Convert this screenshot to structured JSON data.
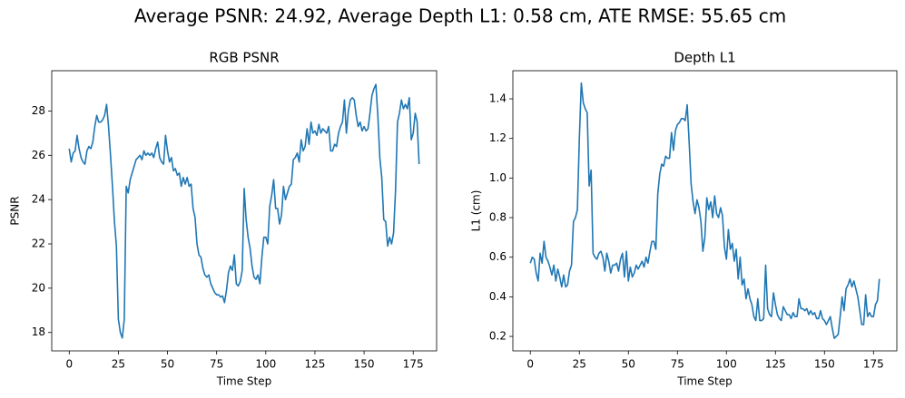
{
  "title": "Average PSNR: 24.92, Average Depth L1: 0.58 cm, ATE RMSE: 55.65 cm",
  "chart_data": [
    {
      "type": "line",
      "title": "RGB PSNR",
      "xlabel": "Time Step",
      "ylabel": "PSNR",
      "color": "#1f77b4",
      "x": [
        0,
        1,
        2,
        3,
        4,
        5,
        6,
        7,
        8,
        9,
        10,
        11,
        12,
        13,
        14,
        15,
        16,
        17,
        18,
        19,
        20,
        21,
        22,
        23,
        24,
        25,
        26,
        27,
        28,
        29,
        30,
        31,
        32,
        33,
        34,
        35,
        36,
        37,
        38,
        39,
        40,
        41,
        42,
        43,
        44,
        45,
        46,
        47,
        48,
        49,
        50,
        51,
        52,
        53,
        54,
        55,
        56,
        57,
        58,
        59,
        60,
        61,
        62,
        63,
        64,
        65,
        66,
        67,
        68,
        69,
        70,
        71,
        72,
        73,
        74,
        75,
        76,
        77,
        78,
        79,
        80,
        81,
        82,
        83,
        84,
        85,
        86,
        87,
        88,
        89,
        90,
        91,
        92,
        93,
        94,
        95,
        96,
        97,
        98,
        99,
        100,
        101,
        102,
        103,
        104,
        105,
        106,
        107,
        108,
        109,
        110,
        111,
        112,
        113,
        114,
        115,
        116,
        117,
        118,
        119,
        120,
        121,
        122,
        123,
        124,
        125,
        126,
        127,
        128,
        129,
        130,
        131,
        132,
        133,
        134,
        135,
        136,
        137,
        138,
        139,
        140,
        141,
        142,
        143,
        144,
        145,
        146,
        147,
        148,
        149,
        150,
        151,
        152,
        153,
        154,
        155,
        156,
        157,
        158,
        159,
        160,
        161,
        162,
        163,
        164,
        165,
        166,
        167,
        168,
        169,
        170,
        171,
        172,
        173,
        174,
        175,
        176,
        177,
        178
      ],
      "values": [
        26.3,
        25.7,
        26.1,
        26.2,
        26.9,
        26.3,
        25.9,
        25.7,
        25.6,
        26.2,
        26.4,
        26.3,
        26.6,
        27.3,
        27.8,
        27.5,
        27.5,
        27.6,
        27.8,
        28.3,
        27.3,
        26.0,
        24.6,
        23.0,
        21.9,
        18.6,
        18.0,
        17.75,
        18.6,
        24.6,
        24.3,
        24.9,
        25.2,
        25.5,
        25.8,
        25.9,
        26.0,
        25.8,
        26.2,
        26.0,
        26.1,
        26.0,
        26.1,
        25.9,
        26.3,
        26.6,
        25.9,
        25.7,
        25.6,
        26.9,
        26.2,
        25.7,
        25.9,
        25.3,
        25.4,
        25.1,
        25.2,
        24.6,
        25.0,
        24.7,
        25.0,
        24.6,
        24.7,
        23.6,
        23.2,
        22.0,
        21.5,
        21.4,
        20.9,
        20.6,
        20.5,
        20.6,
        20.2,
        20.0,
        19.8,
        19.7,
        19.7,
        19.6,
        19.65,
        19.35,
        19.9,
        20.7,
        21.0,
        20.8,
        21.5,
        20.2,
        20.1,
        20.3,
        20.8,
        24.5,
        23.1,
        22.3,
        21.8,
        21.0,
        20.5,
        20.4,
        20.6,
        20.2,
        21.4,
        22.3,
        22.3,
        22.0,
        23.7,
        24.2,
        24.9,
        23.6,
        23.6,
        22.9,
        23.3,
        24.6,
        24.0,
        24.3,
        24.6,
        24.7,
        25.8,
        25.9,
        26.1,
        25.7,
        26.7,
        26.2,
        26.4,
        27.2,
        26.5,
        27.5,
        27.0,
        27.1,
        26.9,
        27.4,
        27.0,
        27.2,
        27.1,
        27.0,
        27.3,
        26.2,
        26.2,
        26.5,
        26.4,
        27.0,
        27.3,
        27.5,
        28.5,
        27.0,
        28.0,
        28.5,
        28.6,
        28.5,
        27.8,
        27.3,
        27.5,
        27.1,
        27.3,
        27.1,
        27.2,
        27.9,
        28.7,
        29.0,
        29.2,
        27.8,
        25.9,
        25.0,
        23.1,
        23.0,
        21.9,
        22.3,
        22.0,
        22.5,
        24.4,
        27.5,
        27.9,
        28.5,
        28.1,
        28.3,
        28.1,
        28.6,
        26.7,
        27.0,
        27.9,
        27.5,
        25.6
      ],
      "xlim": [
        -8.9,
        186.9
      ],
      "ylim": [
        17.17,
        29.82
      ],
      "xticks": [
        0,
        25,
        50,
        75,
        100,
        125,
        150,
        175
      ],
      "yticks": [
        18,
        20,
        22,
        24,
        26,
        28
      ]
    },
    {
      "type": "line",
      "title": "Depth L1",
      "xlabel": "Time Step",
      "ylabel": "L1 (cm)",
      "color": "#1f77b4",
      "x": [
        0,
        1,
        2,
        3,
        4,
        5,
        6,
        7,
        8,
        9,
        10,
        11,
        12,
        13,
        14,
        15,
        16,
        17,
        18,
        19,
        20,
        21,
        22,
        23,
        24,
        25,
        26,
        27,
        28,
        29,
        30,
        31,
        32,
        33,
        34,
        35,
        36,
        37,
        38,
        39,
        40,
        41,
        42,
        43,
        44,
        45,
        46,
        47,
        48,
        49,
        50,
        51,
        52,
        53,
        54,
        55,
        56,
        57,
        58,
        59,
        60,
        61,
        62,
        63,
        64,
        65,
        66,
        67,
        68,
        69,
        70,
        71,
        72,
        73,
        74,
        75,
        76,
        77,
        78,
        79,
        80,
        81,
        82,
        83,
        84,
        85,
        86,
        87,
        88,
        89,
        90,
        91,
        92,
        93,
        94,
        95,
        96,
        97,
        98,
        99,
        100,
        101,
        102,
        103,
        104,
        105,
        106,
        107,
        108,
        109,
        110,
        111,
        112,
        113,
        114,
        115,
        116,
        117,
        118,
        119,
        120,
        121,
        122,
        123,
        124,
        125,
        126,
        127,
        128,
        129,
        130,
        131,
        132,
        133,
        134,
        135,
        136,
        137,
        138,
        139,
        140,
        141,
        142,
        143,
        144,
        145,
        146,
        147,
        148,
        149,
        150,
        151,
        152,
        153,
        154,
        155,
        156,
        157,
        158,
        159,
        160,
        161,
        162,
        163,
        164,
        165,
        166,
        167,
        168,
        169,
        170,
        171,
        172,
        173,
        174,
        175,
        176,
        177,
        178
      ],
      "values": [
        0.57,
        0.6,
        0.59,
        0.52,
        0.48,
        0.62,
        0.57,
        0.68,
        0.6,
        0.58,
        0.55,
        0.51,
        0.56,
        0.48,
        0.54,
        0.5,
        0.45,
        0.51,
        0.45,
        0.46,
        0.53,
        0.56,
        0.78,
        0.8,
        0.84,
        1.2,
        1.48,
        1.38,
        1.35,
        1.33,
        0.96,
        1.04,
        0.62,
        0.6,
        0.59,
        0.62,
        0.63,
        0.6,
        0.53,
        0.62,
        0.58,
        0.52,
        0.56,
        0.56,
        0.57,
        0.53,
        0.59,
        0.62,
        0.5,
        0.63,
        0.48,
        0.55,
        0.5,
        0.52,
        0.56,
        0.54,
        0.56,
        0.58,
        0.55,
        0.6,
        0.57,
        0.63,
        0.68,
        0.68,
        0.64,
        0.92,
        1.02,
        1.07,
        1.06,
        1.11,
        1.1,
        1.1,
        1.23,
        1.14,
        1.24,
        1.27,
        1.28,
        1.3,
        1.3,
        1.29,
        1.37,
        1.18,
        0.97,
        0.88,
        0.82,
        0.89,
        0.85,
        0.78,
        0.63,
        0.7,
        0.9,
        0.84,
        0.88,
        0.8,
        0.91,
        0.82,
        0.8,
        0.85,
        0.81,
        0.65,
        0.59,
        0.74,
        0.64,
        0.67,
        0.58,
        0.64,
        0.49,
        0.6,
        0.46,
        0.49,
        0.39,
        0.44,
        0.39,
        0.36,
        0.3,
        0.28,
        0.39,
        0.28,
        0.28,
        0.29,
        0.56,
        0.34,
        0.31,
        0.3,
        0.42,
        0.36,
        0.31,
        0.29,
        0.28,
        0.35,
        0.33,
        0.31,
        0.31,
        0.29,
        0.32,
        0.3,
        0.3,
        0.39,
        0.34,
        0.34,
        0.33,
        0.34,
        0.31,
        0.33,
        0.31,
        0.32,
        0.29,
        0.29,
        0.33,
        0.29,
        0.28,
        0.26,
        0.28,
        0.3,
        0.24,
        0.19,
        0.2,
        0.21,
        0.3,
        0.4,
        0.33,
        0.44,
        0.46,
        0.49,
        0.45,
        0.48,
        0.44,
        0.4,
        0.33,
        0.26,
        0.26,
        0.41,
        0.3,
        0.32,
        0.3,
        0.3,
        0.36,
        0.38,
        0.49
      ],
      "xlim": [
        -8.9,
        186.9
      ],
      "ylim": [
        0.127,
        1.542
      ],
      "xticks": [
        0,
        25,
        50,
        75,
        100,
        125,
        150,
        175
      ],
      "yticks": [
        0.2,
        0.4,
        0.6,
        0.8,
        {
          "value": 1,
          "label": "1.0"
        },
        1.2,
        1.4
      ]
    }
  ]
}
